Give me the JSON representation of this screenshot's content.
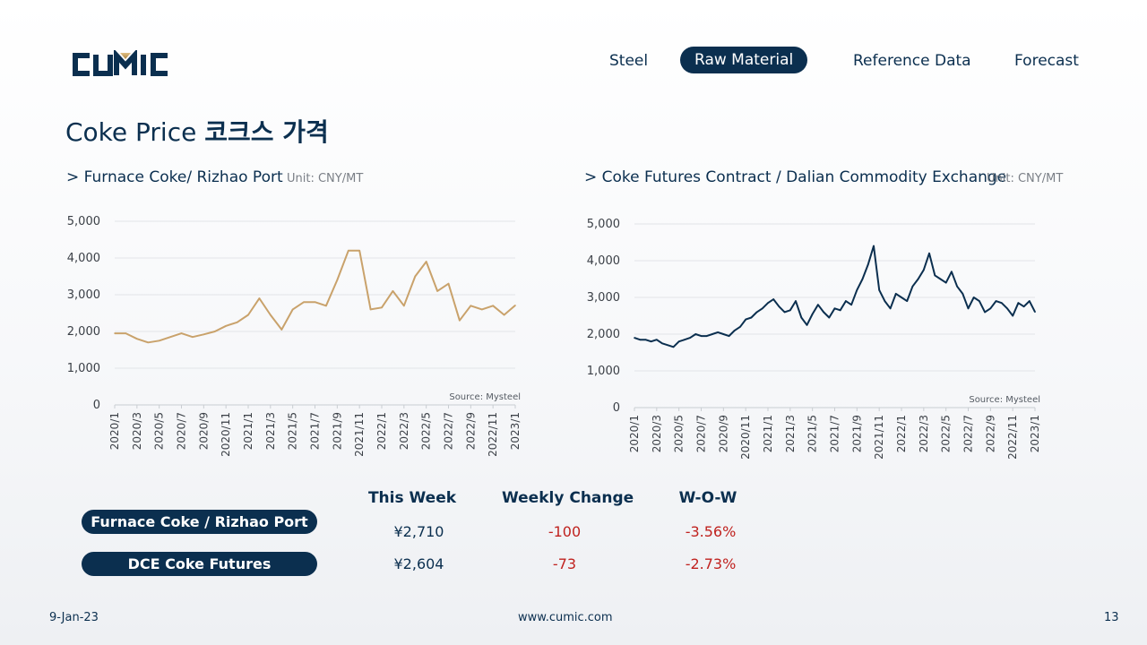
{
  "brand": {
    "name": "CUMIC"
  },
  "nav": {
    "items": [
      {
        "label": "Steel",
        "active": false
      },
      {
        "label": "Raw Material",
        "active": true
      },
      {
        "label": "Reference Data",
        "active": false
      },
      {
        "label": "Forecast",
        "active": false
      }
    ]
  },
  "page": {
    "title_en": "Coke Price",
    "title_ko": "코크스 가격"
  },
  "colors": {
    "navy": "#0b2f4f",
    "gold": "#c9a26b",
    "negative": "#c0221f",
    "grid": "#e2e4e8"
  },
  "left_panel": {
    "subtitle": "> Furnace Coke/ Rizhao Port",
    "unit": "Unit: CNY/MT"
  },
  "right_panel": {
    "subtitle": "> Coke Futures Contract / Dalian Commodity Exchange",
    "unit": "Unit: CNY/MT"
  },
  "chart_data": [
    {
      "type": "line",
      "title": "",
      "source": "Source: Mysteel",
      "color": "#c9a26b",
      "ylim": [
        0,
        5000
      ],
      "yticks": [
        0,
        1000,
        2000,
        3000,
        4000,
        5000
      ],
      "ytick_labels": [
        "0",
        "1,000",
        "2,000",
        "3,000",
        "4,000",
        "5,000"
      ],
      "xlim": [
        "2020/1",
        "2023/1"
      ],
      "xtick_labels": [
        "2020/1",
        "2020/3",
        "2020/5",
        "2020/7",
        "2020/9",
        "2020/11",
        "2021/1",
        "2021/3",
        "2021/5",
        "2021/7",
        "2021/9",
        "2021/11",
        "2022/1",
        "2022/3",
        "2022/5",
        "2022/7",
        "2022/9",
        "2022/11",
        "2023/1"
      ],
      "grid": true,
      "x": [
        "2020/1",
        "2020/2",
        "2020/3",
        "2020/4",
        "2020/5",
        "2020/6",
        "2020/7",
        "2020/8",
        "2020/9",
        "2020/10",
        "2020/11",
        "2020/12",
        "2021/1",
        "2021/2",
        "2021/3",
        "2021/4",
        "2021/5",
        "2021/6",
        "2021/7",
        "2021/8",
        "2021/9",
        "2021/10",
        "2021/11",
        "2021/12",
        "2022/1",
        "2022/2",
        "2022/3",
        "2022/4",
        "2022/5",
        "2022/6",
        "2022/7",
        "2022/8",
        "2022/9",
        "2022/10",
        "2022/11",
        "2022/12",
        "2023/1"
      ],
      "values": [
        1950,
        1950,
        1800,
        1700,
        1750,
        1850,
        1950,
        1850,
        1920,
        2000,
        2150,
        2250,
        2450,
        2900,
        2450,
        2050,
        2600,
        2800,
        2800,
        2700,
        3400,
        4200,
        4200,
        2600,
        2650,
        3100,
        2700,
        3500,
        3900,
        3100,
        3300,
        2300,
        2700,
        2600,
        2700,
        2450,
        2710
      ]
    },
    {
      "type": "line",
      "title": "",
      "source": "Source: Mysteel",
      "color": "#0b2f4f",
      "ylim": [
        0,
        5000
      ],
      "yticks": [
        0,
        1000,
        2000,
        3000,
        4000,
        5000
      ],
      "ytick_labels": [
        "0",
        "1,000",
        "2,000",
        "3,000",
        "4,000",
        "5,000"
      ],
      "xlim": [
        "2020/1",
        "2023/1"
      ],
      "xtick_labels": [
        "2020/1",
        "2020/3",
        "2020/5",
        "2020/7",
        "2020/9",
        "2020/11",
        "2021/1",
        "2021/3",
        "2021/5",
        "2021/7",
        "2021/9",
        "2021/11",
        "2022/1",
        "2022/3",
        "2022/5",
        "2022/7",
        "2022/9",
        "2022/11",
        "2023/1"
      ],
      "grid": true,
      "x": [
        "2020/1",
        "2020/1.5",
        "2020/2",
        "2020/2.5",
        "2020/3",
        "2020/3.5",
        "2020/4",
        "2020/4.5",
        "2020/5",
        "2020/5.5",
        "2020/6",
        "2020/6.5",
        "2020/7",
        "2020/7.5",
        "2020/8",
        "2020/8.5",
        "2020/9",
        "2020/9.5",
        "2020/10",
        "2020/10.5",
        "2020/11",
        "2020/11.5",
        "2020/12",
        "2020/12.5",
        "2021/1",
        "2021/1.5",
        "2021/2",
        "2021/2.5",
        "2021/3",
        "2021/3.5",
        "2021/4",
        "2021/4.5",
        "2021/5",
        "2021/5.5",
        "2021/6",
        "2021/6.5",
        "2021/7",
        "2021/7.5",
        "2021/8",
        "2021/8.5",
        "2021/9",
        "2021/9.5",
        "2021/10",
        "2021/10.5",
        "2021/11",
        "2021/11.5",
        "2021/12",
        "2021/12.5",
        "2022/1",
        "2022/1.5",
        "2022/2",
        "2022/2.5",
        "2022/3",
        "2022/3.5",
        "2022/4",
        "2022/4.5",
        "2022/5",
        "2022/5.5",
        "2022/6",
        "2022/6.5",
        "2022/7",
        "2022/7.5",
        "2022/8",
        "2022/8.5",
        "2022/9",
        "2022/9.5",
        "2022/10",
        "2022/10.5",
        "2022/11",
        "2022/11.5",
        "2022/12",
        "2022/12.5",
        "2023/1"
      ],
      "values": [
        1900,
        1850,
        1850,
        1800,
        1850,
        1750,
        1700,
        1650,
        1800,
        1850,
        1900,
        2000,
        1950,
        1950,
        2000,
        2050,
        2000,
        1950,
        2100,
        2200,
        2400,
        2450,
        2600,
        2700,
        2850,
        2950,
        2750,
        2600,
        2650,
        2900,
        2450,
        2250,
        2550,
        2800,
        2600,
        2450,
        2700,
        2650,
        2900,
        2800,
        3200,
        3500,
        3900,
        4400,
        3200,
        2900,
        2700,
        3100,
        3000,
        2900,
        3300,
        3500,
        3750,
        4200,
        3600,
        3500,
        3400,
        3700,
        3300,
        3100,
        2700,
        3000,
        2900,
        2600,
        2700,
        2900,
        2850,
        2700,
        2500,
        2850,
        2750,
        2900,
        2604
      ]
    }
  ],
  "summary": {
    "headers": {
      "this_week": "This Week",
      "weekly_change": "Weekly Change",
      "wow": "W-O-W"
    },
    "rows": [
      {
        "name": "Furnace Coke / Rizhao Port",
        "price": "¥2,710",
        "change": "-100",
        "wow": "-3.56%"
      },
      {
        "name": "DCE Coke Futures",
        "price": "¥2,604",
        "change": "-73",
        "wow": "-2.73%"
      }
    ]
  },
  "footer": {
    "date": "9-Jan-23",
    "url": "www.cumic.com",
    "page_number": "13"
  }
}
